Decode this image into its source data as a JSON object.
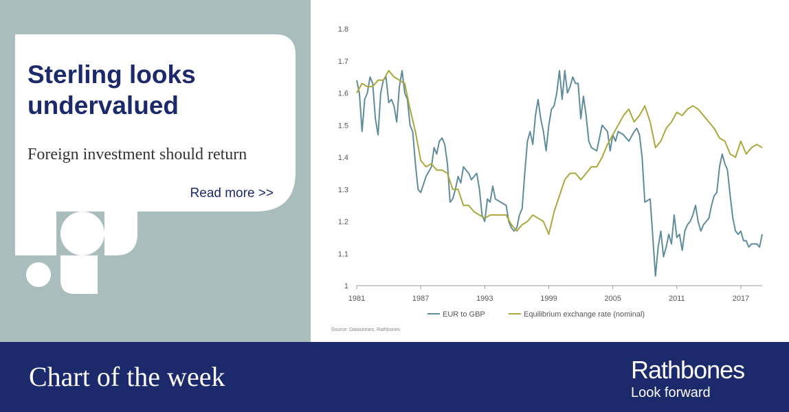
{
  "panel": {
    "title": "Sterling looks undervalued",
    "subtitle": "Foreign investment should return",
    "link": "Read more >>"
  },
  "footer": {
    "title": "Chart of the week",
    "brand": "Rathbones",
    "tagline": "Look forward"
  },
  "chart_data": {
    "type": "line",
    "xlim": [
      1981,
      2019
    ],
    "xticks": [
      1981,
      1987,
      1993,
      1999,
      2005,
      2011,
      2017
    ],
    "ylim": [
      1,
      1.8
    ],
    "yticks": [
      1,
      1.1,
      1.2,
      1.3,
      1.4,
      1.5,
      1.6,
      1.7,
      1.8
    ],
    "source": "Source: Datastream, Rathbones",
    "series": [
      {
        "name": "EUR to GBP",
        "color": "#5e8c9b",
        "x": [
          1981.0,
          1981.25,
          1981.5,
          1981.75,
          1982.0,
          1982.25,
          1982.5,
          1982.75,
          1983.0,
          1983.25,
          1983.5,
          1983.75,
          1984.0,
          1984.25,
          1984.5,
          1984.75,
          1985.0,
          1985.25,
          1985.5,
          1985.75,
          1986.0,
          1986.25,
          1986.5,
          1986.75,
          1987.0,
          1987.5,
          1988.0,
          1988.25,
          1988.5,
          1988.75,
          1989.0,
          1989.25,
          1989.5,
          1989.75,
          1990.0,
          1990.25,
          1990.5,
          1990.75,
          1991.0,
          1991.25,
          1991.5,
          1991.75,
          1992.0,
          1992.25,
          1992.5,
          1992.75,
          1993.0,
          1993.25,
          1993.5,
          1993.75,
          1994.0,
          1994.5,
          1995.0,
          1995.25,
          1995.5,
          1995.75,
          1996.0,
          1996.25,
          1996.5,
          1996.75,
          1997.0,
          1997.25,
          1997.5,
          1997.75,
          1998.0,
          1998.25,
          1998.5,
          1998.75,
          1999.0,
          1999.25,
          1999.5,
          1999.75,
          2000.0,
          2000.25,
          2000.5,
          2000.75,
          2001.0,
          2001.25,
          2001.5,
          2001.75,
          2002.0,
          2002.25,
          2002.5,
          2002.75,
          2003.0,
          2003.5,
          2004.0,
          2004.5,
          2004.75,
          2005.0,
          2005.25,
          2005.5,
          2006.0,
          2006.5,
          2007.0,
          2007.25,
          2007.5,
          2007.75,
          2008.0,
          2008.5,
          2008.75,
          2009.0,
          2009.25,
          2009.5,
          2009.75,
          2010.0,
          2010.25,
          2010.5,
          2010.75,
          2011.0,
          2011.25,
          2011.5,
          2011.75,
          2012.0,
          2012.25,
          2012.5,
          2012.75,
          2013.0,
          2013.25,
          2013.5,
          2013.75,
          2014.0,
          2014.25,
          2014.5,
          2014.75,
          2015.0,
          2015.25,
          2015.5,
          2015.75,
          2016.0,
          2016.25,
          2016.5,
          2016.75,
          2017.0,
          2017.25,
          2017.5,
          2017.75,
          2018.0,
          2018.5,
          2018.75,
          2019.0
        ],
        "values": [
          1.64,
          1.6,
          1.48,
          1.58,
          1.6,
          1.65,
          1.63,
          1.52,
          1.47,
          1.6,
          1.64,
          1.65,
          1.57,
          1.58,
          1.56,
          1.51,
          1.62,
          1.67,
          1.6,
          1.58,
          1.5,
          1.48,
          1.38,
          1.3,
          1.29,
          1.34,
          1.37,
          1.43,
          1.41,
          1.45,
          1.46,
          1.44,
          1.38,
          1.26,
          1.27,
          1.3,
          1.34,
          1.32,
          1.37,
          1.36,
          1.35,
          1.33,
          1.34,
          1.35,
          1.3,
          1.22,
          1.2,
          1.27,
          1.26,
          1.31,
          1.27,
          1.26,
          1.25,
          1.2,
          1.18,
          1.17,
          1.18,
          1.22,
          1.24,
          1.35,
          1.45,
          1.48,
          1.44,
          1.53,
          1.58,
          1.52,
          1.48,
          1.42,
          1.5,
          1.55,
          1.56,
          1.6,
          1.67,
          1.58,
          1.67,
          1.6,
          1.62,
          1.65,
          1.63,
          1.63,
          1.52,
          1.59,
          1.53,
          1.45,
          1.43,
          1.42,
          1.5,
          1.48,
          1.42,
          1.47,
          1.45,
          1.48,
          1.47,
          1.45,
          1.48,
          1.49,
          1.47,
          1.4,
          1.26,
          1.27,
          1.15,
          1.03,
          1.12,
          1.17,
          1.09,
          1.12,
          1.16,
          1.13,
          1.22,
          1.15,
          1.16,
          1.11,
          1.17,
          1.19,
          1.2,
          1.22,
          1.25,
          1.2,
          1.17,
          1.19,
          1.2,
          1.21,
          1.25,
          1.28,
          1.29,
          1.37,
          1.41,
          1.38,
          1.36,
          1.28,
          1.21,
          1.17,
          1.16,
          1.17,
          1.14,
          1.14,
          1.12,
          1.13,
          1.13,
          1.12,
          1.16
        ]
      },
      {
        "name": "Equilibrium exchange rate (nominal)",
        "color": "#aaa83c",
        "x": [
          1981,
          1981.5,
          1982,
          1982.5,
          1983,
          1983.5,
          1984,
          1984.5,
          1985,
          1985.5,
          1986,
          1986.5,
          1987,
          1987.5,
          1988,
          1988.5,
          1989,
          1989.5,
          1990,
          1990.5,
          1991,
          1991.5,
          1992,
          1992.5,
          1993,
          1993.5,
          1994,
          1994.5,
          1995,
          1995.5,
          1996,
          1996.5,
          1997,
          1997.5,
          1998,
          1998.5,
          1999,
          1999.5,
          2000,
          2000.5,
          2001,
          2001.5,
          2002,
          2002.5,
          2003,
          2003.5,
          2004,
          2004.5,
          2005,
          2005.5,
          2006,
          2006.5,
          2007,
          2007.5,
          2008,
          2008.5,
          2009,
          2009.5,
          2010,
          2010.5,
          2011,
          2011.5,
          2012,
          2012.5,
          2013,
          2013.5,
          2014,
          2014.5,
          2015,
          2015.5,
          2016,
          2016.5,
          2017,
          2017.5,
          2018,
          2018.5,
          2019
        ],
        "values": [
          1.6,
          1.63,
          1.62,
          1.62,
          1.64,
          1.64,
          1.67,
          1.65,
          1.64,
          1.63,
          1.55,
          1.48,
          1.39,
          1.37,
          1.38,
          1.36,
          1.36,
          1.35,
          1.3,
          1.3,
          1.25,
          1.25,
          1.23,
          1.22,
          1.21,
          1.22,
          1.22,
          1.22,
          1.22,
          1.19,
          1.17,
          1.19,
          1.2,
          1.22,
          1.21,
          1.2,
          1.16,
          1.23,
          1.28,
          1.33,
          1.35,
          1.35,
          1.33,
          1.35,
          1.37,
          1.37,
          1.4,
          1.44,
          1.47,
          1.5,
          1.53,
          1.55,
          1.51,
          1.53,
          1.56,
          1.51,
          1.43,
          1.45,
          1.49,
          1.51,
          1.54,
          1.53,
          1.55,
          1.56,
          1.55,
          1.53,
          1.51,
          1.49,
          1.46,
          1.45,
          1.41,
          1.4,
          1.45,
          1.41,
          1.43,
          1.44,
          1.43
        ]
      }
    ]
  }
}
